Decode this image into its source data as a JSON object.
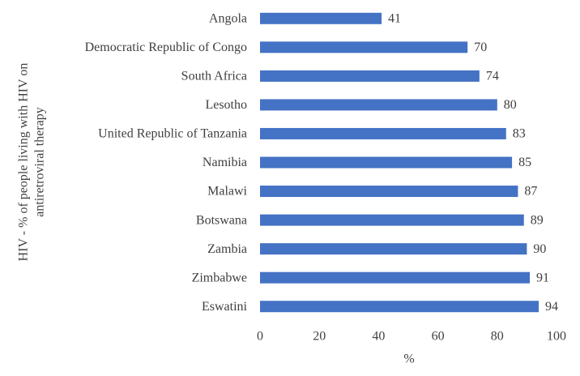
{
  "chart_data": {
    "type": "bar",
    "orientation": "horizontal",
    "y_label": [
      "HIV - % of people living with HIV on",
      "antiretroviral therapy"
    ],
    "x_label": "%",
    "categories": [
      "Angola",
      "Democratic Republic of Congo",
      "South Africa",
      "Lesotho",
      "United Republic of Tanzania",
      "Namibia",
      "Malawi",
      "Botswana",
      "Zambia",
      "Zimbabwe",
      "Eswatini"
    ],
    "values": [
      41,
      70,
      74,
      80,
      83,
      85,
      87,
      89,
      90,
      91,
      94
    ],
    "color": "#4472c4",
    "xlim": [
      0,
      100
    ],
    "xticks": [
      0,
      20,
      40,
      60,
      80,
      100
    ],
    "grid": false
  }
}
